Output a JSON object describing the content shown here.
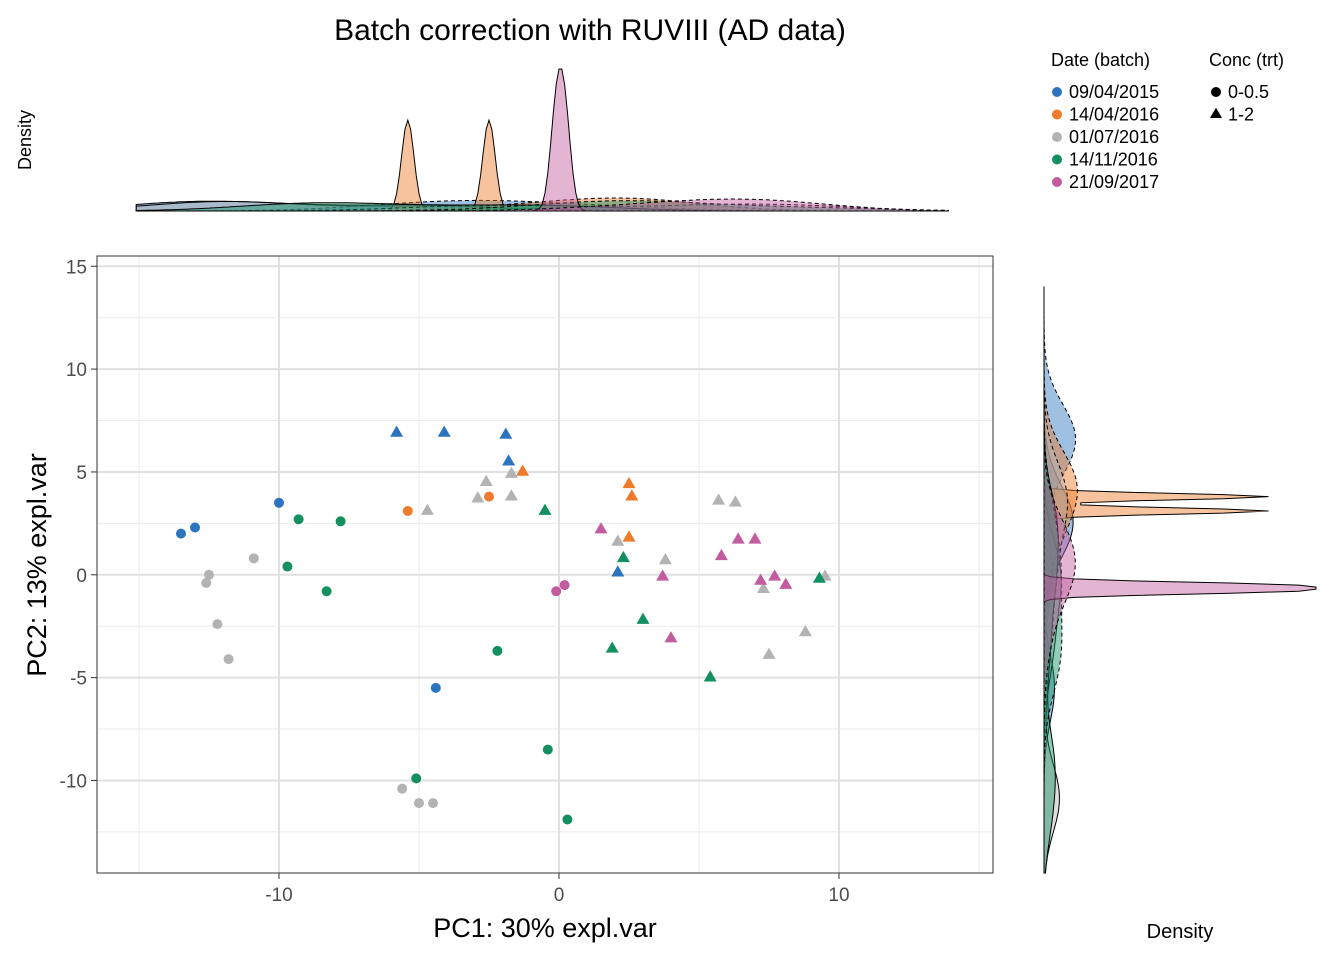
{
  "chart_data": {
    "type": "scatter",
    "title": "Batch correction with RUVIII (AD data)",
    "xlabel": "PC1: 30% expl.var",
    "ylabel": "PC2: 13% expl.var",
    "xlim": [
      -16.5,
      15.5
    ],
    "ylim": [
      -14.5,
      15.5
    ],
    "xticks": [
      -10,
      0,
      10
    ],
    "yticks": [
      -10,
      -5,
      0,
      5,
      10,
      15
    ],
    "grid": true,
    "top_density_label": "Density",
    "right_density_label": "Density",
    "legend": {
      "placement": "top-right",
      "color_title": "Date (batch)",
      "shape_title": "Conc (trt)",
      "batches": [
        {
          "label": "09/04/2015",
          "color": "#2C74BD"
        },
        {
          "label": "14/04/2016",
          "color": "#EE7A2A"
        },
        {
          "label": "01/07/2016",
          "color": "#B3B3B3"
        },
        {
          "label": "14/11/2016",
          "color": "#12905F"
        },
        {
          "label": "21/09/2017",
          "color": "#C25C9E"
        }
      ],
      "shapes": [
        {
          "label": "0-0.5",
          "shape": "circle"
        },
        {
          "label": "1-2",
          "shape": "triangle"
        }
      ]
    },
    "points": [
      {
        "x": -13.5,
        "y": 2.0,
        "batch": 0,
        "trt": 0
      },
      {
        "x": -13.0,
        "y": 2.3,
        "batch": 0,
        "trt": 0
      },
      {
        "x": -10.0,
        "y": 3.5,
        "batch": 0,
        "trt": 0
      },
      {
        "x": -4.4,
        "y": -5.5,
        "batch": 0,
        "trt": 0
      },
      {
        "x": -5.8,
        "y": 6.9,
        "batch": 0,
        "trt": 1
      },
      {
        "x": -4.1,
        "y": 6.9,
        "batch": 0,
        "trt": 1
      },
      {
        "x": -1.9,
        "y": 6.8,
        "batch": 0,
        "trt": 1
      },
      {
        "x": -1.8,
        "y": 5.5,
        "batch": 0,
        "trt": 1
      },
      {
        "x": 2.1,
        "y": 0.1,
        "batch": 0,
        "trt": 1
      },
      {
        "x": -5.4,
        "y": 3.1,
        "batch": 1,
        "trt": 0
      },
      {
        "x": -2.5,
        "y": 3.8,
        "batch": 1,
        "trt": 0
      },
      {
        "x": -1.3,
        "y": 5.0,
        "batch": 1,
        "trt": 1
      },
      {
        "x": 2.5,
        "y": 4.4,
        "batch": 1,
        "trt": 1
      },
      {
        "x": 2.6,
        "y": 3.8,
        "batch": 1,
        "trt": 1
      },
      {
        "x": 2.5,
        "y": 1.8,
        "batch": 1,
        "trt": 1
      },
      {
        "x": -12.5,
        "y": 0.0,
        "batch": 2,
        "trt": 0
      },
      {
        "x": -12.6,
        "y": -0.4,
        "batch": 2,
        "trt": 0
      },
      {
        "x": -10.9,
        "y": 0.8,
        "batch": 2,
        "trt": 0
      },
      {
        "x": -12.2,
        "y": -2.4,
        "batch": 2,
        "trt": 0
      },
      {
        "x": -11.8,
        "y": -4.1,
        "batch": 2,
        "trt": 0
      },
      {
        "x": -5.6,
        "y": -10.4,
        "batch": 2,
        "trt": 0
      },
      {
        "x": -5.0,
        "y": -11.1,
        "batch": 2,
        "trt": 0
      },
      {
        "x": -4.5,
        "y": -11.1,
        "batch": 2,
        "trt": 0
      },
      {
        "x": -4.7,
        "y": 3.1,
        "batch": 2,
        "trt": 1
      },
      {
        "x": -2.9,
        "y": 3.7,
        "batch": 2,
        "trt": 1
      },
      {
        "x": -2.6,
        "y": 4.5,
        "batch": 2,
        "trt": 1
      },
      {
        "x": -1.7,
        "y": 4.9,
        "batch": 2,
        "trt": 1
      },
      {
        "x": -1.7,
        "y": 3.8,
        "batch": 2,
        "trt": 1
      },
      {
        "x": 2.1,
        "y": 1.6,
        "batch": 2,
        "trt": 1
      },
      {
        "x": 3.8,
        "y": 0.7,
        "batch": 2,
        "trt": 1
      },
      {
        "x": 5.7,
        "y": 3.6,
        "batch": 2,
        "trt": 1
      },
      {
        "x": 6.3,
        "y": 3.5,
        "batch": 2,
        "trt": 1
      },
      {
        "x": 7.3,
        "y": -0.7,
        "batch": 2,
        "trt": 1
      },
      {
        "x": 7.5,
        "y": -3.9,
        "batch": 2,
        "trt": 1
      },
      {
        "x": 8.8,
        "y": -2.8,
        "batch": 2,
        "trt": 1
      },
      {
        "x": 9.5,
        "y": -0.1,
        "batch": 2,
        "trt": 1
      },
      {
        "x": -9.3,
        "y": 2.7,
        "batch": 3,
        "trt": 0
      },
      {
        "x": -7.8,
        "y": 2.6,
        "batch": 3,
        "trt": 0
      },
      {
        "x": -9.7,
        "y": 0.4,
        "batch": 3,
        "trt": 0
      },
      {
        "x": -8.3,
        "y": -0.8,
        "batch": 3,
        "trt": 0
      },
      {
        "x": -2.2,
        "y": -3.7,
        "batch": 3,
        "trt": 0
      },
      {
        "x": -0.4,
        "y": -8.5,
        "batch": 3,
        "trt": 0
      },
      {
        "x": -5.1,
        "y": -9.9,
        "batch": 3,
        "trt": 0
      },
      {
        "x": 0.3,
        "y": -11.9,
        "batch": 3,
        "trt": 0
      },
      {
        "x": -0.5,
        "y": 3.1,
        "batch": 3,
        "trt": 1
      },
      {
        "x": 2.3,
        "y": 0.8,
        "batch": 3,
        "trt": 1
      },
      {
        "x": 1.9,
        "y": -3.6,
        "batch": 3,
        "trt": 1
      },
      {
        "x": 3.0,
        "y": -2.2,
        "batch": 3,
        "trt": 1
      },
      {
        "x": 5.4,
        "y": -5.0,
        "batch": 3,
        "trt": 1
      },
      {
        "x": 9.3,
        "y": -0.2,
        "batch": 3,
        "trt": 1
      },
      {
        "x": -0.1,
        "y": -0.8,
        "batch": 4,
        "trt": 0
      },
      {
        "x": 0.2,
        "y": -0.5,
        "batch": 4,
        "trt": 0
      },
      {
        "x": 1.5,
        "y": 2.2,
        "batch": 4,
        "trt": 1
      },
      {
        "x": 3.7,
        "y": -0.1,
        "batch": 4,
        "trt": 1
      },
      {
        "x": 4.0,
        "y": -3.1,
        "batch": 4,
        "trt": 1
      },
      {
        "x": 5.8,
        "y": 0.9,
        "batch": 4,
        "trt": 1
      },
      {
        "x": 6.4,
        "y": 1.7,
        "batch": 4,
        "trt": 1
      },
      {
        "x": 7.0,
        "y": 1.7,
        "batch": 4,
        "trt": 1
      },
      {
        "x": 7.2,
        "y": -0.3,
        "batch": 4,
        "trt": 1
      },
      {
        "x": 7.7,
        "y": -0.1,
        "batch": 4,
        "trt": 1
      },
      {
        "x": 8.1,
        "y": -0.5,
        "batch": 4,
        "trt": 1
      }
    ]
  }
}
